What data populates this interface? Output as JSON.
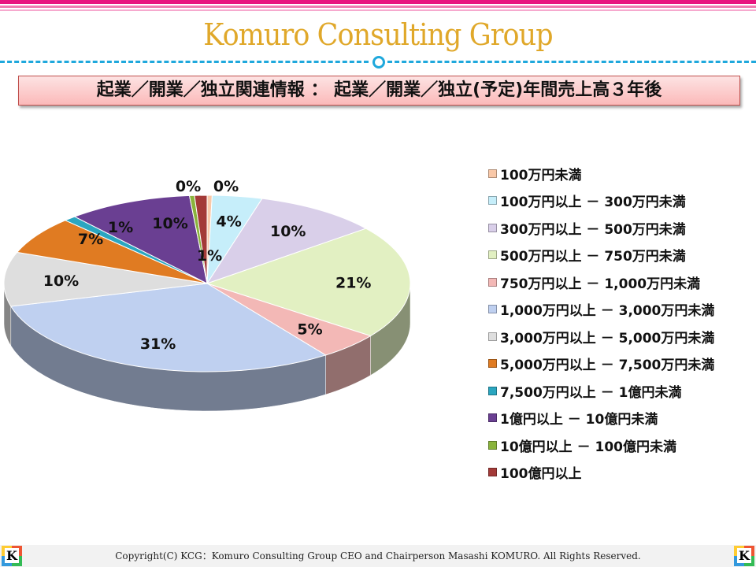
{
  "header": {
    "title": "Komuro Consulting Group",
    "subtitle": "起業／開業／独立関連情報 ： 起業／開業／独立(予定)年間売上高３年後"
  },
  "footer": {
    "copyright": "Copyright(C)  KCG：Komuro Consulting Group CEO and Chairperson Masashi KOMURO. All Rights Reserved.",
    "logo_letter": "K"
  },
  "chart_data": {
    "type": "pie",
    "title": "",
    "legend_position": "right",
    "categories": [
      "100万円未満",
      "100万円以上 － 300万円未満",
      "300万円以上 － 500万円未満",
      "500万円以上 － 750万円未満",
      "750万円以上 － 1,000万円未満",
      "1,000万円以上 － 3,000万円未満",
      "3,000万円以上 － 5,000万円未満",
      "5,000万円以上 － 7,500万円未満",
      "7,500万円以上 － 1億円未満",
      "1億円以上 － 10億円未満",
      "10億円以上 － 100億円未満",
      "100億円以上"
    ],
    "values": [
      0,
      4,
      10,
      21,
      5,
      31,
      10,
      7,
      1,
      10,
      0,
      1
    ],
    "labels": [
      "0%",
      "4%",
      "10%",
      "21%",
      "5%",
      "31%",
      "10%",
      "7%",
      "1%",
      "10%",
      "0%",
      "1%"
    ],
    "colors": [
      "#f9c8a8",
      "#c6eefa",
      "#d9cfe9",
      "#e2f0c2",
      "#f3b8b6",
      "#bfd0f0",
      "#dedede",
      "#e07b22",
      "#2ba6c0",
      "#6a3f92",
      "#8ab43c",
      "#a33a38"
    ]
  }
}
